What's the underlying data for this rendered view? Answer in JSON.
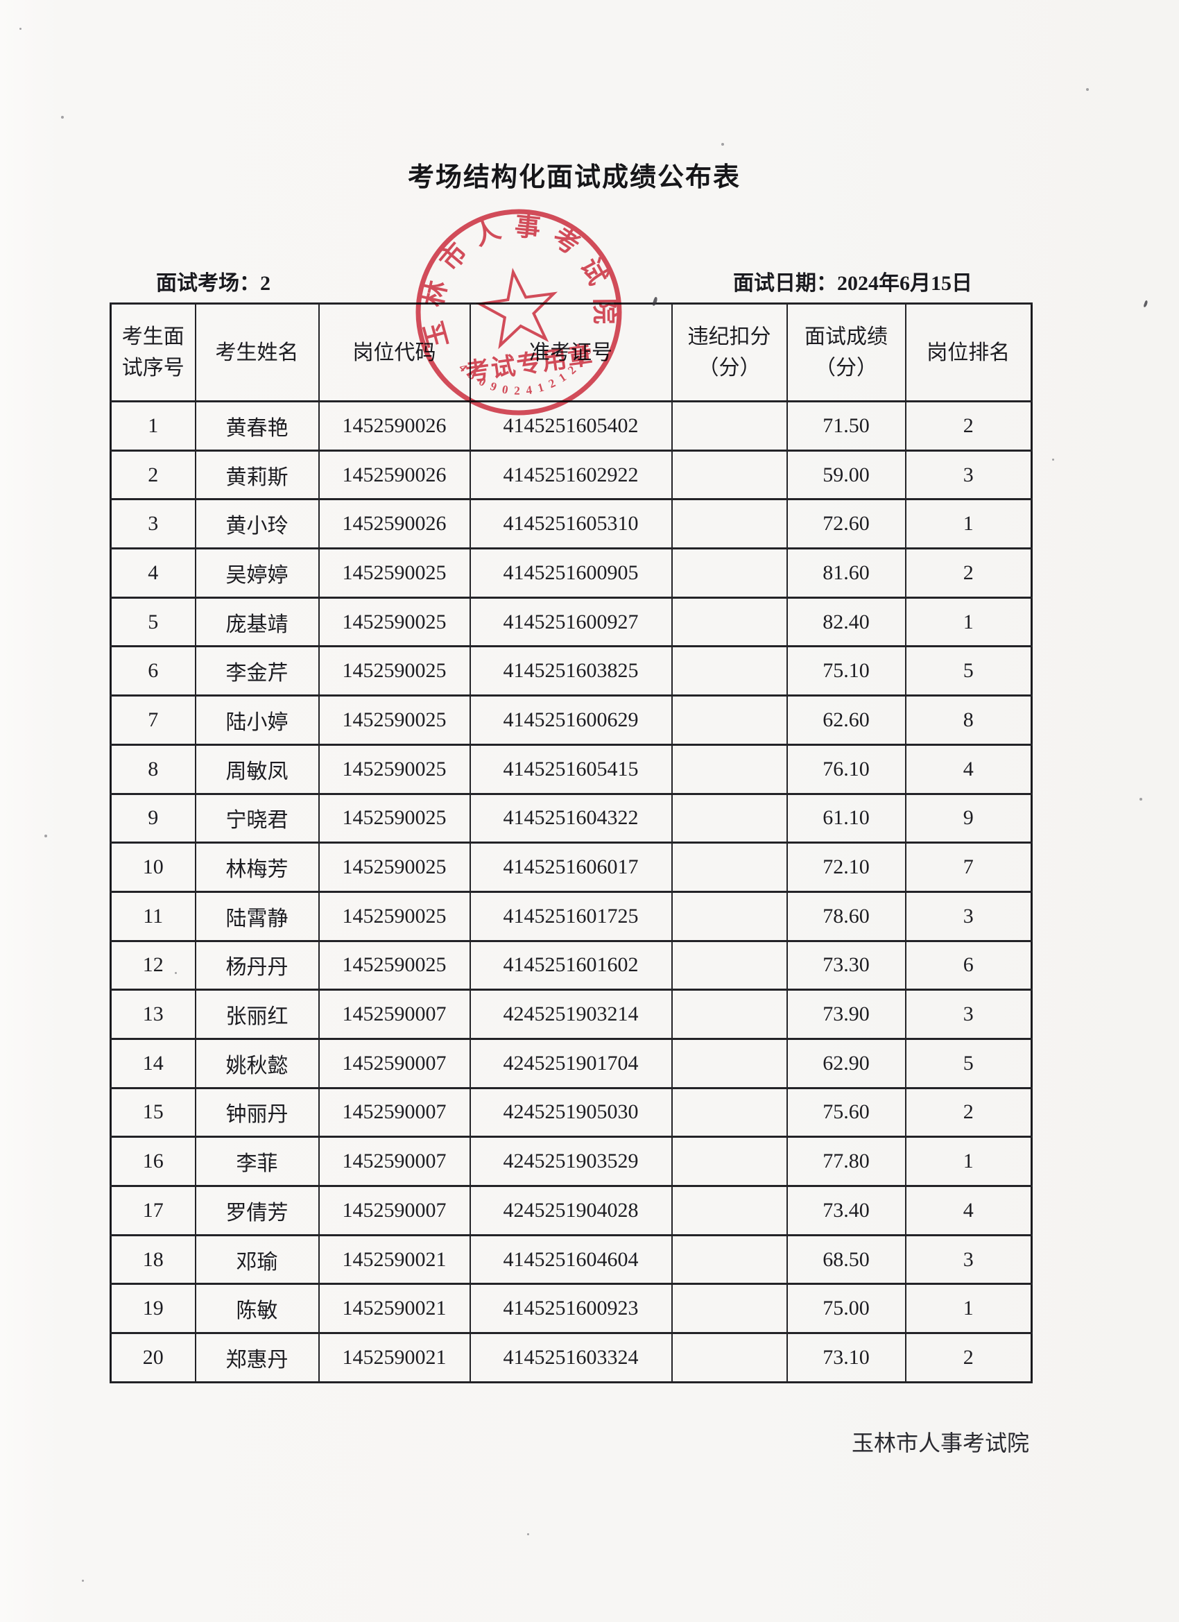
{
  "page": {
    "title": "考场结构化面试成绩公布表",
    "venue": "面试考场：2",
    "date": "面试日期：2024年6月15日",
    "footer": "玉林市人事考试院"
  },
  "table": {
    "headers": [
      "考生面\n试序号",
      "考生姓名",
      "岗位代码",
      "准考证号",
      "违纪扣分\n（分）",
      "面试成绩\n（分）",
      "岗位排名"
    ],
    "rows": [
      [
        "1",
        "黄春艳",
        "1452590026",
        "4145251605402",
        "",
        "71.50",
        "2"
      ],
      [
        "2",
        "黄莉斯",
        "1452590026",
        "4145251602922",
        "",
        "59.00",
        "3"
      ],
      [
        "3",
        "黄小玲",
        "1452590026",
        "4145251605310",
        "",
        "72.60",
        "1"
      ],
      [
        "4",
        "吴婷婷",
        "1452590025",
        "4145251600905",
        "",
        "81.60",
        "2"
      ],
      [
        "5",
        "庞基靖",
        "1452590025",
        "4145251600927",
        "",
        "82.40",
        "1"
      ],
      [
        "6",
        "李金芹",
        "1452590025",
        "4145251603825",
        "",
        "75.10",
        "5"
      ],
      [
        "7",
        "陆小婷",
        "1452590025",
        "4145251600629",
        "",
        "62.60",
        "8"
      ],
      [
        "8",
        "周敏凤",
        "1452590025",
        "4145251605415",
        "",
        "76.10",
        "4"
      ],
      [
        "9",
        "宁晓君",
        "1452590025",
        "4145251604322",
        "",
        "61.10",
        "9"
      ],
      [
        "10",
        "林梅芳",
        "1452590025",
        "4145251606017",
        "",
        "72.10",
        "7"
      ],
      [
        "11",
        "陆霄静",
        "1452590025",
        "4145251601725",
        "",
        "78.60",
        "3"
      ],
      [
        "12",
        "杨丹丹",
        "1452590025",
        "4145251601602",
        "",
        "73.30",
        "6"
      ],
      [
        "13",
        "张丽红",
        "1452590007",
        "4245251903214",
        "",
        "73.90",
        "3"
      ],
      [
        "14",
        "姚秋懿",
        "1452590007",
        "4245251901704",
        "",
        "62.90",
        "5"
      ],
      [
        "15",
        "钟丽丹",
        "1452590007",
        "4245251905030",
        "",
        "75.60",
        "2"
      ],
      [
        "16",
        "李菲",
        "1452590007",
        "4245251903529",
        "",
        "77.80",
        "1"
      ],
      [
        "17",
        "罗倩芳",
        "1452590007",
        "4245251904028",
        "",
        "73.40",
        "4"
      ],
      [
        "18",
        "邓瑜",
        "1452590021",
        "4145251604604",
        "",
        "68.50",
        "3"
      ],
      [
        "19",
        "陈敏",
        "1452590021",
        "4145251600923",
        "",
        "75.00",
        "1"
      ],
      [
        "20",
        "郑惠丹",
        "1452590021",
        "4145251603324",
        "",
        "73.10",
        "2"
      ]
    ]
  },
  "stamp": {
    "org_text": "玉林市人事考试院",
    "purpose_text": "考试专用章",
    "serial_number": "4509024121236",
    "color": "#d5404f"
  }
}
